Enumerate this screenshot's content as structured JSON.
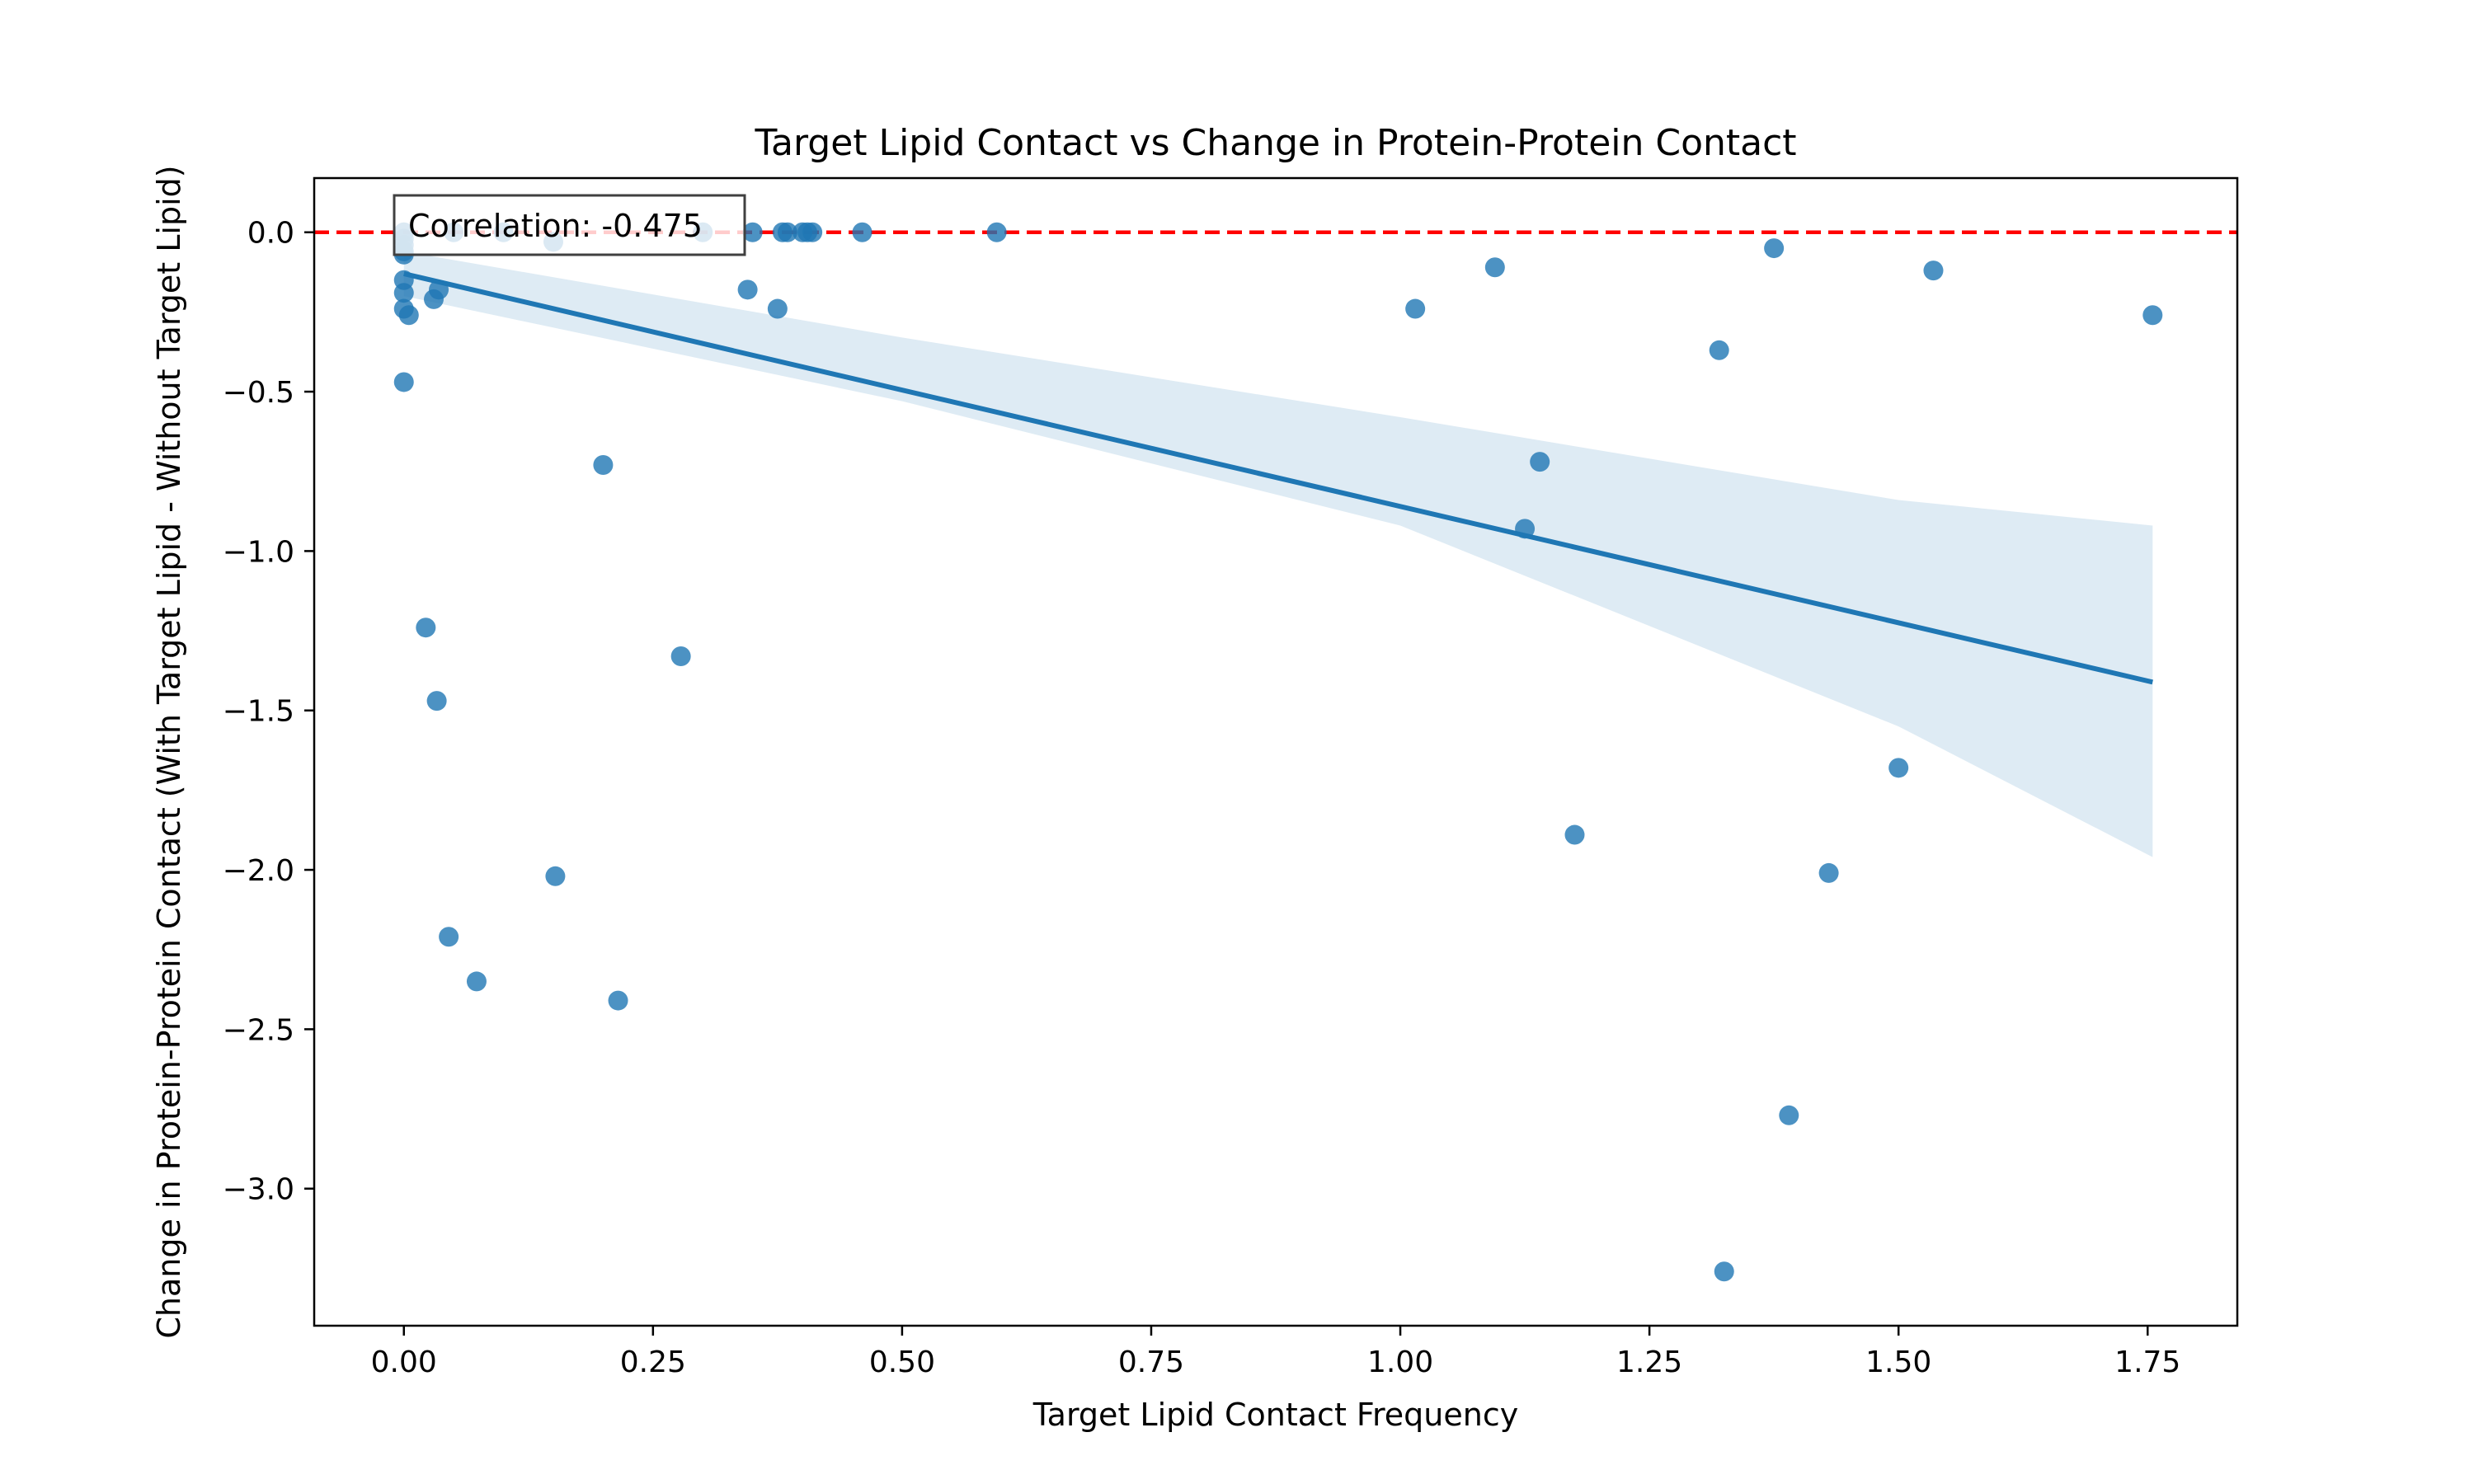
{
  "chart_data": {
    "type": "scatter",
    "title": "Target Lipid Contact vs Change in Protein-Protein Contact",
    "xlabel": "Target Lipid Contact Frequency",
    "ylabel": "Change in Protein-Protein Contact (With Target Lipid - Without Target Lipid)",
    "xlim": [
      -0.09,
      1.84
    ],
    "ylim": [
      -3.43,
      0.17
    ],
    "x_ticks": [
      0.0,
      0.25,
      0.5,
      0.75,
      1.0,
      1.25,
      1.5,
      1.75
    ],
    "x_tick_labels": [
      "0.00",
      "0.25",
      "0.50",
      "0.75",
      "1.00",
      "1.25",
      "1.50",
      "1.75"
    ],
    "y_ticks": [
      0.0,
      -0.5,
      -1.0,
      -1.5,
      -2.0,
      -2.5,
      -3.0
    ],
    "y_tick_labels": [
      "0.0",
      "−0.5",
      "−1.0",
      "−1.5",
      "−2.0",
      "−2.5",
      "−3.0"
    ],
    "grid": false,
    "colors": {
      "points": "#1f77b4",
      "fit_line": "#1f77b4",
      "confidence_band": "#1f77b4",
      "reference_line": "#ff0000"
    },
    "reference_line": {
      "y": 0.0,
      "style": "dashed"
    },
    "annotation": {
      "text": "Correlation: -0.475",
      "placement": "top-left"
    },
    "regression": {
      "x_range": [
        0.0,
        1.755
      ],
      "intercept": -0.13,
      "slope": -0.73,
      "ci_lower": [
        [
          0.0,
          -0.2
        ],
        [
          0.5,
          -0.53
        ],
        [
          1.0,
          -0.92
        ],
        [
          1.5,
          -1.55
        ],
        [
          1.755,
          -1.96
        ]
      ],
      "ci_upper": [
        [
          0.0,
          -0.06
        ],
        [
          0.5,
          -0.33
        ],
        [
          1.0,
          -0.58
        ],
        [
          1.5,
          -0.84
        ],
        [
          1.755,
          -0.92
        ]
      ]
    },
    "series": [
      {
        "points": [
          [
            0.0,
            0.0
          ],
          [
            0.0,
            -0.02
          ],
          [
            0.0,
            -0.04
          ],
          [
            0.0,
            -0.06
          ],
          [
            0.0,
            -0.07
          ],
          [
            0.0,
            -0.15
          ],
          [
            0.0,
            -0.19
          ],
          [
            0.0,
            -0.24
          ],
          [
            0.0,
            -0.47
          ],
          [
            0.005,
            -0.26
          ],
          [
            0.03,
            -0.21
          ],
          [
            0.035,
            -0.18
          ],
          [
            0.05,
            0.0
          ],
          [
            0.1,
            0.0
          ],
          [
            0.15,
            -0.03
          ],
          [
            0.3,
            0.0
          ],
          [
            0.35,
            0.0
          ],
          [
            0.345,
            -0.18
          ],
          [
            0.375,
            -0.24
          ],
          [
            0.38,
            0.0
          ],
          [
            0.385,
            0.0
          ],
          [
            0.4,
            0.0
          ],
          [
            0.405,
            0.0
          ],
          [
            0.41,
            0.0
          ],
          [
            0.46,
            0.0
          ],
          [
            0.595,
            0.0
          ],
          [
            0.2,
            -0.73
          ],
          [
            0.022,
            -1.24
          ],
          [
            0.033,
            -1.47
          ],
          [
            0.278,
            -1.33
          ],
          [
            0.152,
            -2.02
          ],
          [
            0.045,
            -2.21
          ],
          [
            0.073,
            -2.35
          ],
          [
            0.215,
            -2.41
          ],
          [
            1.015,
            -0.24
          ],
          [
            1.095,
            -0.11
          ],
          [
            1.125,
            -0.93
          ],
          [
            1.14,
            -0.72
          ],
          [
            1.175,
            -1.89
          ],
          [
            1.32,
            -0.37
          ],
          [
            1.325,
            -3.26
          ],
          [
            1.375,
            -0.05
          ],
          [
            1.39,
            -2.77
          ],
          [
            1.43,
            -2.01
          ],
          [
            1.5,
            -1.68
          ],
          [
            1.535,
            -0.12
          ],
          [
            1.755,
            -0.26
          ]
        ]
      }
    ]
  }
}
